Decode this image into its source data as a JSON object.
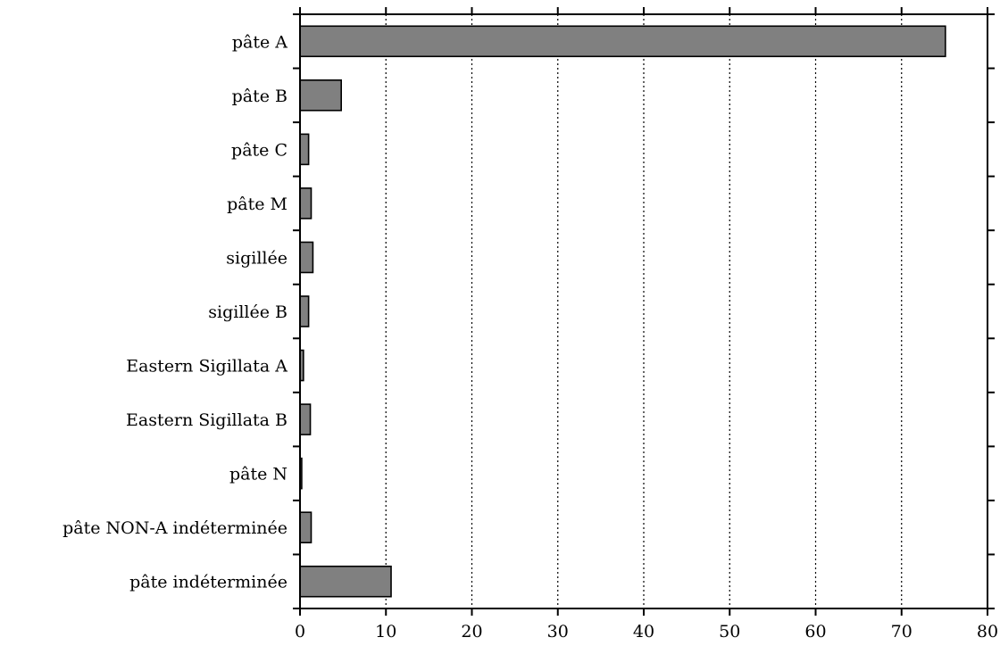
{
  "chart_data": {
    "type": "bar",
    "orientation": "horizontal",
    "categories": [
      "pâte A",
      "pâte B",
      "pâte C",
      "pâte M",
      "sigillée",
      "sigillée B",
      "Eastern Sigillata A",
      "Eastern Sigillata B",
      "pâte N",
      "pâte NON-A indéterminée",
      "pâte indéterminée"
    ],
    "values": [
      75.1,
      4.8,
      1.0,
      1.3,
      1.5,
      1.0,
      0.4,
      1.2,
      0.2,
      1.3,
      10.6
    ],
    "xlim": [
      0,
      80
    ],
    "xticks": [
      0,
      10,
      20,
      30,
      40,
      50,
      60,
      70,
      80
    ],
    "grid": "vertical dotted",
    "colors": {
      "bar_fill": "#808080",
      "bar_stroke": "#000000"
    }
  }
}
